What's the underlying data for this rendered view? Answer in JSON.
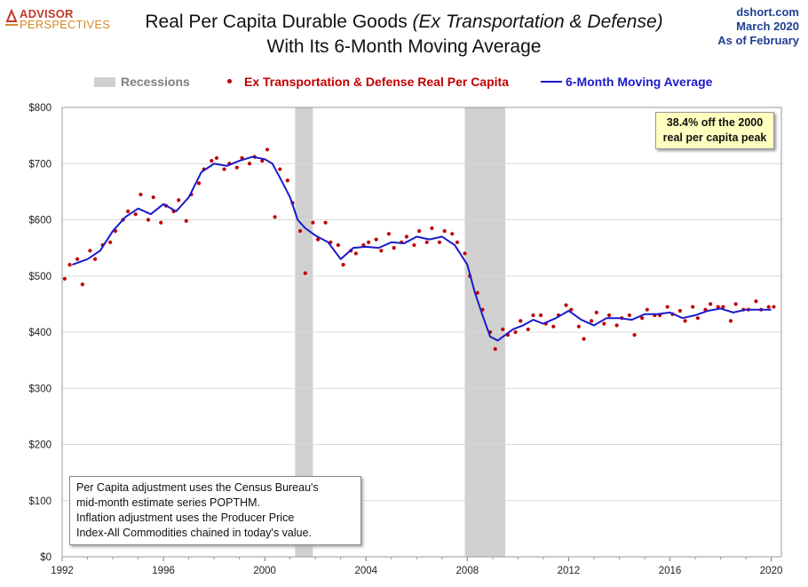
{
  "header": {
    "logo_line1": "ADVISOR",
    "logo_line2": "PERSPECTIVES",
    "title_line1": "Real Per Capita Durable Goods ",
    "title_line1_italic": "(Ex Transportation  & Defense)",
    "title_line2": "With Its 6-Month Moving Average",
    "source_line1": "dshort.com",
    "source_line2": "March 2020",
    "source_line3": "As of February"
  },
  "legend": {
    "recessions": "Recessions",
    "points": "Ex Transportation & Defense Real Per Capita",
    "moving_average": "6-Month Moving Average"
  },
  "annotation": {
    "line1": "38.4% off the 2000",
    "line2": "real per capita peak"
  },
  "note": {
    "line1": "Per Capita adjustment uses the Census Bureau's",
    "line2": "mid-month estimate series POPTHM.",
    "line3": "Inflation adjustment uses the Producer Price",
    "line4": "Index-All Commodities chained in today's value."
  },
  "colors": {
    "points": "#c00000",
    "moving_average": "#1a1acc",
    "recession": "#d0d0d0",
    "grid": "#d9d9d9"
  },
  "chart_data": {
    "type": "line",
    "title": "Real Per Capita Durable Goods (Ex Transportation & Defense) With Its 6-Month Moving Average",
    "xlim": [
      1992,
      2020.4
    ],
    "ylim": [
      0,
      800
    ],
    "x_ticks": [
      1992,
      1996,
      2000,
      2004,
      2008,
      2012,
      2016,
      2020
    ],
    "x_tick_labels": [
      "1992",
      "1996",
      "2000",
      "2004",
      "2008",
      "2012",
      "2016",
      "2020"
    ],
    "y_ticks": [
      0,
      100,
      200,
      300,
      400,
      500,
      600,
      700,
      800
    ],
    "y_tick_labels": [
      "$0",
      "$100",
      "$200",
      "$300",
      "$400",
      "$500",
      "$600",
      "$700",
      "$800"
    ],
    "grid": "horizontal",
    "legend_position": "top",
    "recessions": [
      [
        2001.2,
        2001.9
      ],
      [
        2007.9,
        2009.5
      ]
    ],
    "series": [
      {
        "name": "6-Month Moving Average",
        "style": "line",
        "x": [
          1992.4,
          1993.0,
          1993.5,
          1994.0,
          1994.5,
          1995.0,
          1995.5,
          1996.0,
          1996.5,
          1997.0,
          1997.5,
          1998.0,
          1998.5,
          1999.0,
          1999.5,
          2000.0,
          2000.3,
          2000.6,
          2001.0,
          2001.3,
          2001.6,
          2002.0,
          2002.5,
          2003.0,
          2003.5,
          2004.0,
          2004.5,
          2005.0,
          2005.5,
          2006.0,
          2006.5,
          2007.0,
          2007.5,
          2008.0,
          2008.3,
          2008.6,
          2008.9,
          2009.2,
          2009.5,
          2009.8,
          2010.2,
          2010.6,
          2011.0,
          2011.5,
          2012.0,
          2012.5,
          2013.0,
          2013.5,
          2014.0,
          2014.5,
          2015.0,
          2015.5,
          2016.0,
          2016.5,
          2017.0,
          2017.5,
          2018.0,
          2018.5,
          2019.0,
          2019.5,
          2020.0
        ],
        "y": [
          520,
          530,
          545,
          580,
          605,
          620,
          610,
          628,
          615,
          640,
          685,
          700,
          696,
          705,
          712,
          708,
          700,
          675,
          640,
          600,
          585,
          572,
          560,
          530,
          550,
          552,
          550,
          560,
          558,
          570,
          565,
          570,
          555,
          520,
          470,
          430,
          392,
          385,
          395,
          405,
          412,
          422,
          415,
          425,
          438,
          422,
          412,
          425,
          425,
          422,
          432,
          432,
          435,
          425,
          430,
          438,
          442,
          435,
          440,
          440,
          440
        ]
      },
      {
        "name": "Ex Transportation & Defense Real Per Capita",
        "style": "points",
        "x": [
          1992.1,
          1992.3,
          1992.6,
          1992.8,
          1993.1,
          1993.3,
          1993.6,
          1993.9,
          1994.1,
          1994.4,
          1994.6,
          1994.9,
          1995.1,
          1995.4,
          1995.6,
          1995.9,
          1996.1,
          1996.4,
          1996.6,
          1996.9,
          1997.1,
          1997.4,
          1997.6,
          1997.9,
          1998.1,
          1998.4,
          1998.6,
          1998.9,
          1999.1,
          1999.4,
          1999.6,
          1999.9,
          2000.1,
          2000.4,
          2000.6,
          2000.9,
          2001.1,
          2001.4,
          2001.6,
          2001.9,
          2002.1,
          2002.4,
          2002.6,
          2002.9,
          2003.1,
          2003.4,
          2003.6,
          2003.9,
          2004.1,
          2004.4,
          2004.6,
          2004.9,
          2005.1,
          2005.4,
          2005.6,
          2005.9,
          2006.1,
          2006.4,
          2006.6,
          2006.9,
          2007.1,
          2007.4,
          2007.6,
          2007.9,
          2008.1,
          2008.4,
          2008.6,
          2008.9,
          2009.1,
          2009.4,
          2009.6,
          2009.9,
          2010.1,
          2010.4,
          2010.6,
          2010.9,
          2011.1,
          2011.4,
          2011.6,
          2011.9,
          2012.1,
          2012.4,
          2012.6,
          2012.9,
          2013.1,
          2013.4,
          2013.6,
          2013.9,
          2014.1,
          2014.4,
          2014.6,
          2014.9,
          2015.1,
          2015.4,
          2015.6,
          2015.9,
          2016.1,
          2016.4,
          2016.6,
          2016.9,
          2017.1,
          2017.4,
          2017.6,
          2017.9,
          2018.1,
          2018.4,
          2018.6,
          2018.9,
          2019.1,
          2019.4,
          2019.6,
          2019.9,
          2020.1
        ],
        "y": [
          495,
          520,
          530,
          485,
          545,
          530,
          555,
          560,
          580,
          600,
          615,
          610,
          645,
          600,
          640,
          595,
          625,
          615,
          635,
          598,
          645,
          665,
          690,
          705,
          710,
          690,
          700,
          693,
          710,
          700,
          712,
          705,
          725,
          605,
          690,
          670,
          630,
          580,
          505,
          595,
          565,
          595,
          560,
          555,
          520,
          545,
          540,
          555,
          560,
          565,
          545,
          575,
          550,
          560,
          570,
          555,
          580,
          560,
          585,
          560,
          580,
          575,
          560,
          540,
          500,
          470,
          440,
          400,
          370,
          405,
          395,
          400,
          420,
          405,
          430,
          430,
          415,
          410,
          430,
          448,
          440,
          410,
          388,
          420,
          435,
          415,
          430,
          412,
          425,
          430,
          395,
          425,
          440,
          430,
          430,
          445,
          432,
          438,
          420,
          445,
          425,
          440,
          450,
          445,
          445,
          420,
          450,
          440,
          440,
          455,
          440,
          445,
          445
        ]
      }
    ]
  }
}
